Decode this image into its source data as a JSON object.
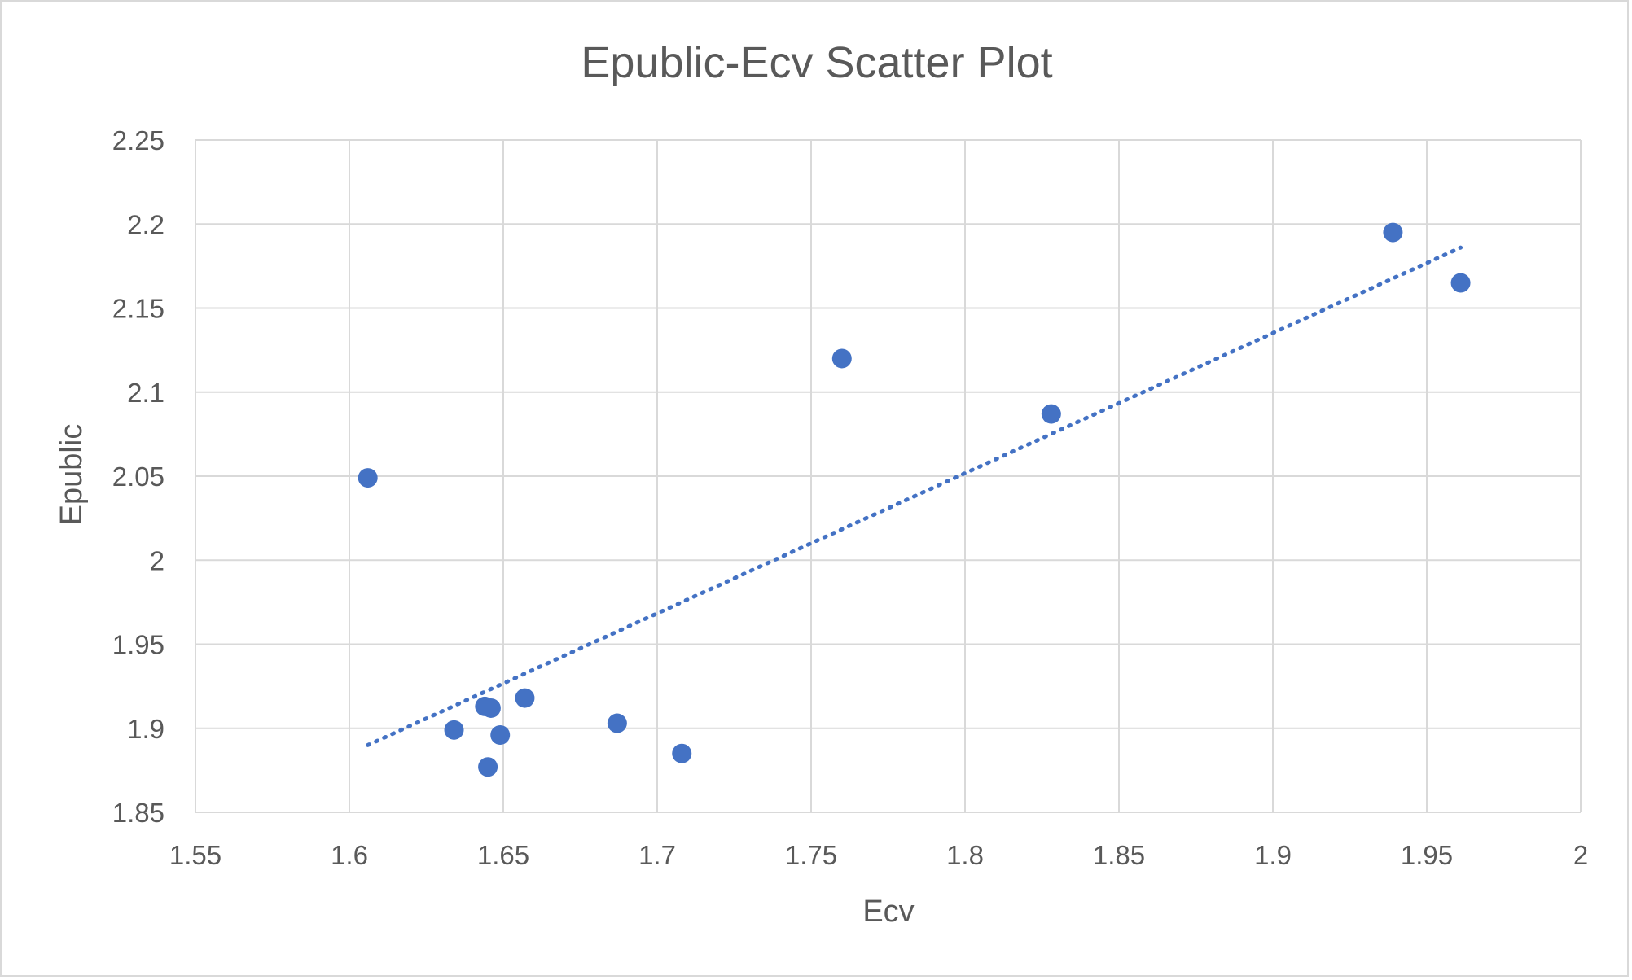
{
  "chart_data": {
    "type": "scatter",
    "title": "Epublic-Ecv Scatter Plot",
    "xlabel": "Ecv",
    "ylabel": "Epublic",
    "xlim": [
      1.55,
      2
    ],
    "ylim": [
      1.85,
      2.25
    ],
    "xticks": [
      "1.55",
      "1.6",
      "1.65",
      "1.7",
      "1.75",
      "1.8",
      "1.85",
      "1.9",
      "1.95",
      "2"
    ],
    "yticks": [
      "1.85",
      "1.9",
      "1.95",
      "2",
      "2.05",
      "2.1",
      "2.15",
      "2.2",
      "2.25"
    ],
    "grid": true,
    "marker_color": "#4472c4",
    "points": [
      {
        "x": 1.606,
        "y": 2.049
      },
      {
        "x": 1.634,
        "y": 1.899
      },
      {
        "x": 1.644,
        "y": 1.913
      },
      {
        "x": 1.646,
        "y": 1.912
      },
      {
        "x": 1.645,
        "y": 1.877
      },
      {
        "x": 1.649,
        "y": 1.896
      },
      {
        "x": 1.657,
        "y": 1.918
      },
      {
        "x": 1.687,
        "y": 1.903
      },
      {
        "x": 1.708,
        "y": 1.885
      },
      {
        "x": 1.76,
        "y": 2.12
      },
      {
        "x": 1.828,
        "y": 2.087
      },
      {
        "x": 1.939,
        "y": 2.195
      },
      {
        "x": 1.961,
        "y": 2.165
      }
    ],
    "trendline": {
      "style": "dotted",
      "x": [
        1.606,
        1.961
      ],
      "y": [
        1.89,
        2.186
      ]
    }
  }
}
